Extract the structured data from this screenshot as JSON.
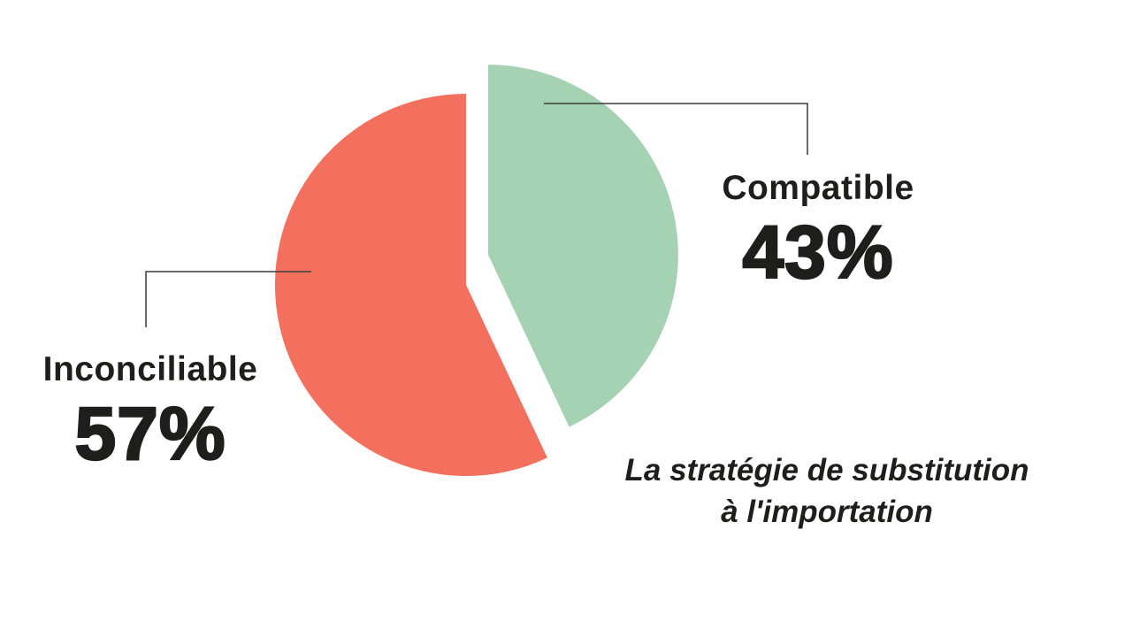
{
  "chart_data": {
    "type": "pie",
    "title": "",
    "caption": {
      "line1": "La stratégie de substitution",
      "line2": "à l'importation"
    },
    "slices": [
      {
        "label": "Compatible",
        "value": 43,
        "value_label": "43%",
        "color": "#A6D2B4"
      },
      {
        "label": "Inconciliable",
        "value": 57,
        "value_label": "57%",
        "color": "#F4705E"
      }
    ],
    "total": 100,
    "start_angle_deg": 0,
    "direction": "clockwise",
    "exploded": true,
    "legend_position": "callout-labels"
  },
  "style": {
    "background": "#FFFFFF",
    "text_color": "#1E1E1C",
    "callout_line_color": "#3C3C3C"
  }
}
